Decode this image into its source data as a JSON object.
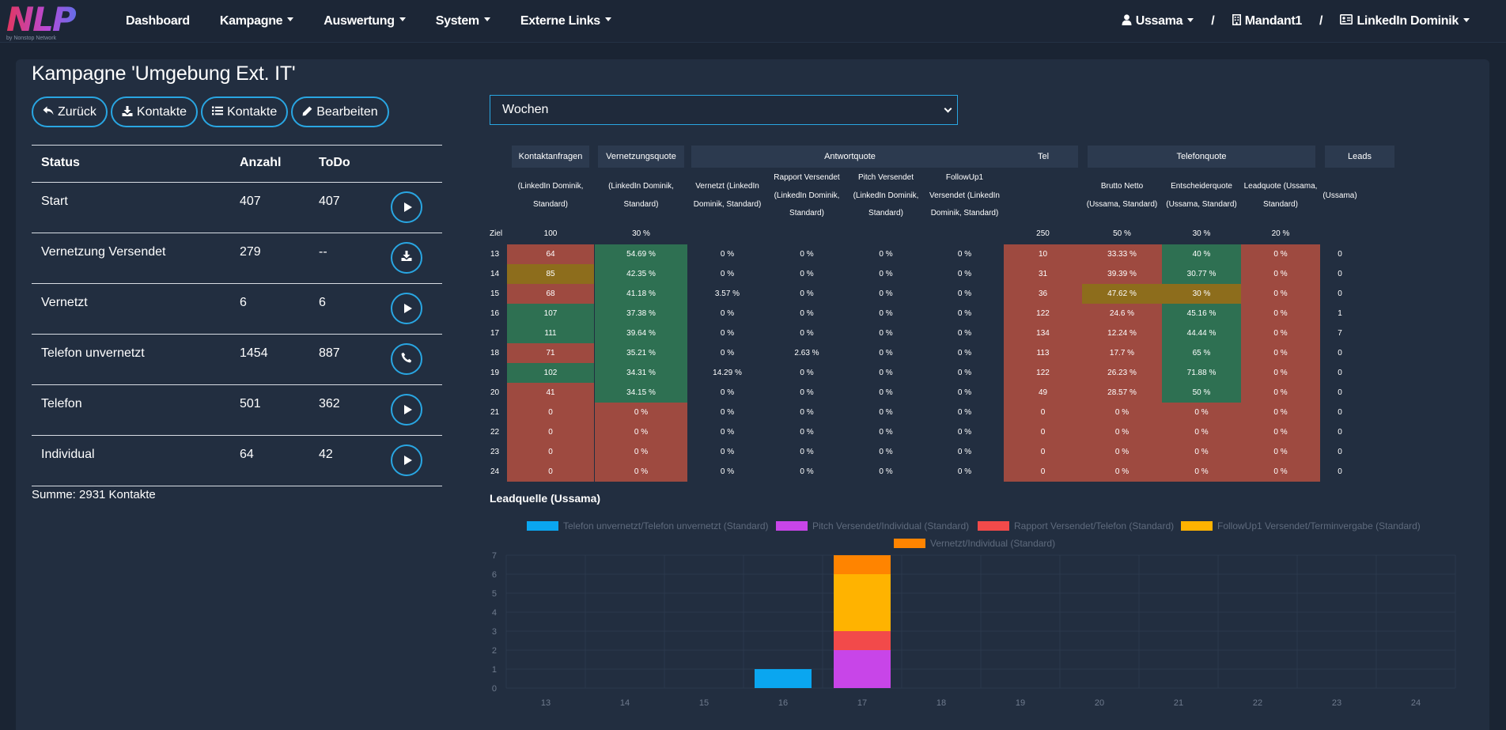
{
  "nav": {
    "logo_text": "NLP",
    "logo_sub": "by Nonstop Network",
    "items": [
      {
        "label": "Dashboard",
        "dropdown": false
      },
      {
        "label": "Kampagne",
        "dropdown": true
      },
      {
        "label": "Auswertung",
        "dropdown": true
      },
      {
        "label": "System",
        "dropdown": true
      },
      {
        "label": "Externe Links",
        "dropdown": true
      }
    ],
    "user": "Ussama",
    "separator": "/",
    "mandant": "Mandant1",
    "account": "LinkedIn Dominik"
  },
  "page": {
    "title": "Kampagne 'Umgebung Ext. IT'",
    "buttons": {
      "back": "Zurück",
      "download_contacts": "Kontakte",
      "list_contacts": "Kontakte",
      "edit": "Bearbeiten"
    },
    "period_select": "Wochen",
    "sum": "Summe: 2931 Kontakte"
  },
  "status_table": {
    "headers": {
      "status": "Status",
      "count": "Anzahl",
      "todo": "ToDo"
    },
    "rows": [
      {
        "status": "Start",
        "count": "407",
        "todo": "407",
        "action": "play-icon"
      },
      {
        "status": "Vernetzung Versendet",
        "count": "279",
        "todo": "--",
        "action": "download-icon"
      },
      {
        "status": "Vernetzt",
        "count": "6",
        "todo": "6",
        "action": "play-icon"
      },
      {
        "status": "Telefon unvernetzt",
        "count": "1454",
        "todo": "887",
        "action": "phone-icon"
      },
      {
        "status": "Telefon",
        "count": "501",
        "todo": "362",
        "action": "play-icon"
      },
      {
        "status": "Individual",
        "count": "64",
        "todo": "42",
        "action": "play-icon"
      }
    ]
  },
  "stats_table": {
    "groups": [
      "Kontaktanfragen",
      "Vernetzungsquote",
      "Antwortquote",
      "Tel",
      "Telefonquote",
      "Leads"
    ],
    "subheaders": [
      "(LinkedIn Dominik, Standard)",
      "(LinkedIn Dominik, Standard)",
      "Vernetzt (LinkedIn Dominik, Standard)",
      "Rapport Versendet (LinkedIn Dominik, Standard)",
      "Pitch Versendet (LinkedIn Dominik, Standard)",
      "FollowUp1 Versendet (LinkedIn Dominik, Standard)",
      "",
      "Brutto Netto (Ussama, Standard)",
      "Entscheiderquote (Ussama, Standard)",
      "Leadquote (Ussama, Standard)",
      "(Ussama)"
    ],
    "ziel_label": "Ziel",
    "ziel": [
      "100",
      "30 %",
      "",
      "",
      "",
      "",
      "250",
      "50 %",
      "30 %",
      "20 %",
      ""
    ],
    "rows": [
      {
        "week": "13",
        "v": [
          "64",
          "54.69 %",
          "0 %",
          "0 %",
          "0 %",
          "0 %",
          "10",
          "33.33 %",
          "40 %",
          "0 %",
          "0"
        ],
        "c": [
          "r",
          "g",
          "",
          "",
          "",
          "",
          "r",
          "r",
          "g",
          "r",
          ""
        ]
      },
      {
        "week": "14",
        "v": [
          "85",
          "42.35 %",
          "0 %",
          "0 %",
          "0 %",
          "0 %",
          "31",
          "39.39 %",
          "30.77 %",
          "0 %",
          "0"
        ],
        "c": [
          "y",
          "g",
          "",
          "",
          "",
          "",
          "r",
          "r",
          "g",
          "r",
          ""
        ]
      },
      {
        "week": "15",
        "v": [
          "68",
          "41.18 %",
          "3.57 %",
          "0 %",
          "0 %",
          "0 %",
          "36",
          "47.62 %",
          "30 %",
          "0 %",
          "0"
        ],
        "c": [
          "r",
          "g",
          "",
          "",
          "",
          "",
          "r",
          "y",
          "y",
          "r",
          ""
        ]
      },
      {
        "week": "16",
        "v": [
          "107",
          "37.38 %",
          "0 %",
          "0 %",
          "0 %",
          "0 %",
          "122",
          "24.6 %",
          "45.16 %",
          "0 %",
          "1"
        ],
        "c": [
          "g",
          "g",
          "",
          "",
          "",
          "",
          "r",
          "r",
          "g",
          "r",
          ""
        ]
      },
      {
        "week": "17",
        "v": [
          "111",
          "39.64 %",
          "0 %",
          "0 %",
          "0 %",
          "0 %",
          "134",
          "12.24 %",
          "44.44 %",
          "0 %",
          "7"
        ],
        "c": [
          "g",
          "g",
          "",
          "",
          "",
          "",
          "r",
          "r",
          "g",
          "r",
          ""
        ]
      },
      {
        "week": "18",
        "v": [
          "71",
          "35.21 %",
          "0 %",
          "2.63 %",
          "0 %",
          "0 %",
          "113",
          "17.7 %",
          "65 %",
          "0 %",
          "0"
        ],
        "c": [
          "r",
          "g",
          "",
          "",
          "",
          "",
          "r",
          "r",
          "g",
          "r",
          ""
        ]
      },
      {
        "week": "19",
        "v": [
          "102",
          "34.31 %",
          "14.29 %",
          "0 %",
          "0 %",
          "0 %",
          "122",
          "26.23 %",
          "71.88 %",
          "0 %",
          "0"
        ],
        "c": [
          "g",
          "g",
          "",
          "",
          "",
          "",
          "r",
          "r",
          "g",
          "r",
          ""
        ]
      },
      {
        "week": "20",
        "v": [
          "41",
          "34.15 %",
          "0 %",
          "0 %",
          "0 %",
          "0 %",
          "49",
          "28.57 %",
          "50 %",
          "0 %",
          "0"
        ],
        "c": [
          "r",
          "g",
          "",
          "",
          "",
          "",
          "r",
          "r",
          "g",
          "r",
          ""
        ]
      },
      {
        "week": "21",
        "v": [
          "0",
          "0 %",
          "0 %",
          "0 %",
          "0 %",
          "0 %",
          "0",
          "0 %",
          "0 %",
          "0 %",
          "0"
        ],
        "c": [
          "r",
          "r",
          "",
          "",
          "",
          "",
          "r",
          "r",
          "r",
          "r",
          ""
        ]
      },
      {
        "week": "22",
        "v": [
          "0",
          "0 %",
          "0 %",
          "0 %",
          "0 %",
          "0 %",
          "0",
          "0 %",
          "0 %",
          "0 %",
          "0"
        ],
        "c": [
          "r",
          "r",
          "",
          "",
          "",
          "",
          "r",
          "r",
          "r",
          "r",
          ""
        ]
      },
      {
        "week": "23",
        "v": [
          "0",
          "0 %",
          "0 %",
          "0 %",
          "0 %",
          "0 %",
          "0",
          "0 %",
          "0 %",
          "0 %",
          "0"
        ],
        "c": [
          "r",
          "r",
          "",
          "",
          "",
          "",
          "r",
          "r",
          "r",
          "r",
          ""
        ]
      },
      {
        "week": "24",
        "v": [
          "0",
          "0 %",
          "0 %",
          "0 %",
          "0 %",
          "0 %",
          "0",
          "0 %",
          "0 %",
          "0 %",
          "0"
        ],
        "c": [
          "r",
          "r",
          "",
          "",
          "",
          "",
          "r",
          "r",
          "r",
          "r",
          ""
        ]
      }
    ],
    "colors": {
      "r": "#9e4a40",
      "g": "#2e7052",
      "y": "#8d6d1c"
    }
  },
  "chart_title": "Leadquelle (Ussama)",
  "chart_data": {
    "type": "bar",
    "stacked": true,
    "categories": [
      "13",
      "14",
      "15",
      "16",
      "17",
      "18",
      "19",
      "20",
      "21",
      "22",
      "23",
      "24"
    ],
    "series": [
      {
        "name": "Telefon unvernetzt/Telefon unvernetzt (Standard)",
        "color": "#0aa6f0",
        "values": [
          0,
          0,
          0,
          1,
          0,
          0,
          0,
          0,
          0,
          0,
          0,
          0
        ]
      },
      {
        "name": "Pitch Versendet/Individual (Standard)",
        "color": "#c845e8",
        "values": [
          0,
          0,
          0,
          0,
          2,
          0,
          0,
          0,
          0,
          0,
          0,
          0
        ]
      },
      {
        "name": "Rapport Versendet/Telefon (Standard)",
        "color": "#f24a4a",
        "values": [
          0,
          0,
          0,
          0,
          1,
          0,
          0,
          0,
          0,
          0,
          0,
          0
        ]
      },
      {
        "name": "FollowUp1 Versendet/Terminvergabe (Standard)",
        "color": "#ffb300",
        "values": [
          0,
          0,
          0,
          0,
          3,
          0,
          0,
          0,
          0,
          0,
          0,
          0
        ]
      },
      {
        "name": "Vernetzt/Individual (Standard)",
        "color": "#ff8400",
        "values": [
          0,
          0,
          0,
          0,
          1,
          0,
          0,
          0,
          0,
          0,
          0,
          0
        ]
      }
    ],
    "ylim": [
      0,
      7
    ],
    "yticks": [
      "0",
      "1",
      "2",
      "3",
      "4",
      "5",
      "6",
      "7"
    ],
    "grid": true,
    "legend_position": "top"
  }
}
